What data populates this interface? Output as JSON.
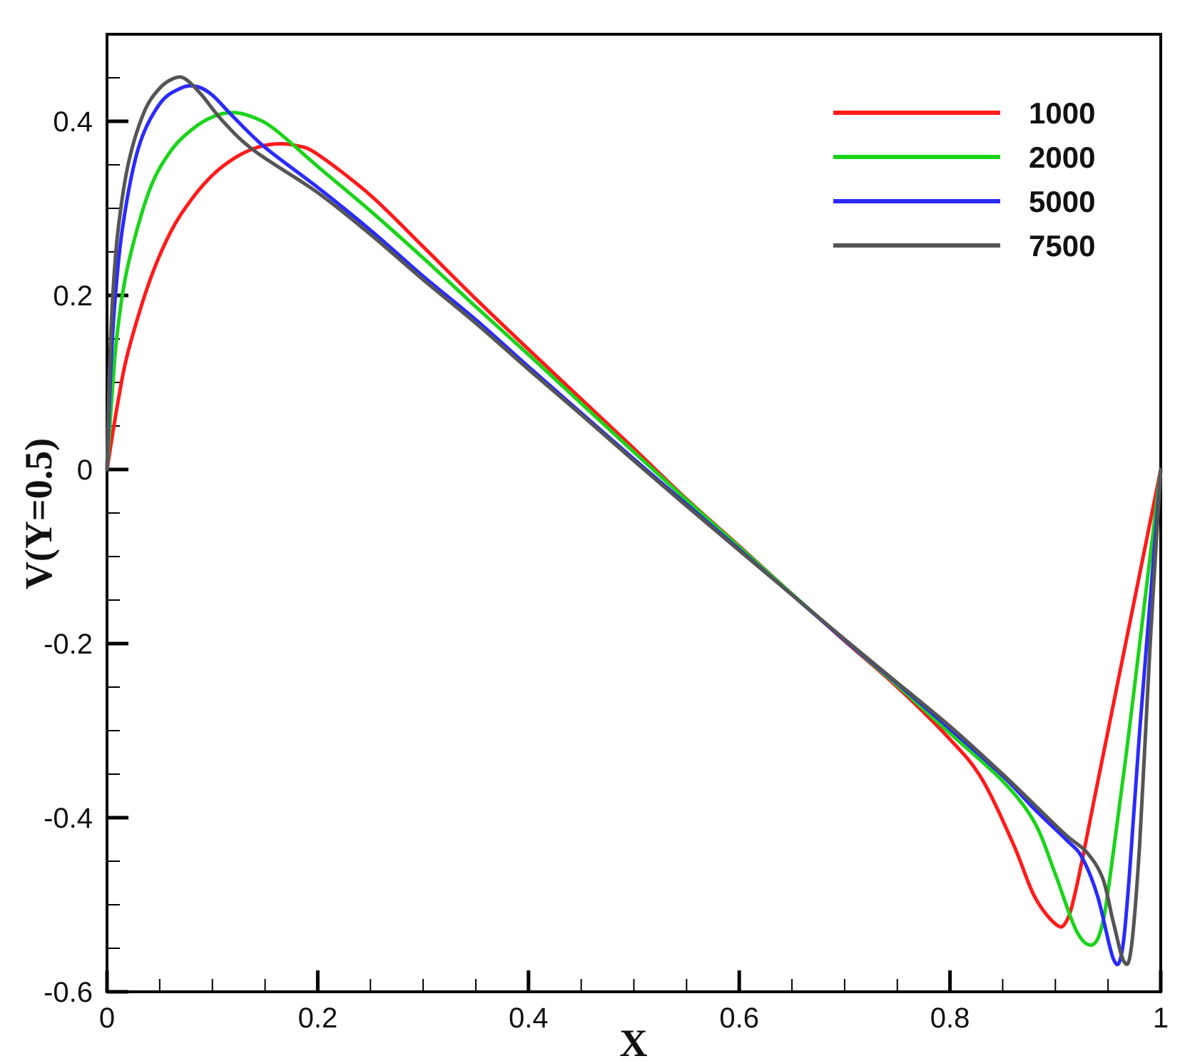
{
  "chart_data": {
    "type": "line",
    "title": "",
    "xlabel": "X",
    "ylabel": "V(Y=0.5)",
    "xlim": [
      0,
      1
    ],
    "ylim": [
      -0.6,
      0.5
    ],
    "x_ticks": [
      0,
      0.2,
      0.4,
      0.6,
      0.8,
      1
    ],
    "x_tick_labels": [
      "0",
      "0.2",
      "0.4",
      "0.6",
      "0.8",
      "1"
    ],
    "y_ticks": [
      -0.6,
      -0.4,
      -0.2,
      0,
      0.2,
      0.4
    ],
    "y_tick_labels": [
      "-0.6",
      "-0.4",
      "-0.2",
      "0",
      "0.2",
      "0.4"
    ],
    "grid": false,
    "legend_position": "top-right",
    "series": [
      {
        "name": "1000",
        "color": "#ff1a1a",
        "points": [
          [
            0,
            0
          ],
          [
            0.01,
            0.075
          ],
          [
            0.02,
            0.135
          ],
          [
            0.04,
            0.215
          ],
          [
            0.06,
            0.272
          ],
          [
            0.08,
            0.31
          ],
          [
            0.1,
            0.338
          ],
          [
            0.12,
            0.357
          ],
          [
            0.14,
            0.369
          ],
          [
            0.16,
            0.374
          ],
          [
            0.18,
            0.372
          ],
          [
            0.2,
            0.362
          ],
          [
            0.25,
            0.315
          ],
          [
            0.3,
            0.256
          ],
          [
            0.35,
            0.196
          ],
          [
            0.4,
            0.138
          ],
          [
            0.45,
            0.081
          ],
          [
            0.5,
            0.024
          ],
          [
            0.55,
            -0.034
          ],
          [
            0.6,
            -0.088
          ],
          [
            0.65,
            -0.143
          ],
          [
            0.7,
            -0.197
          ],
          [
            0.75,
            -0.25
          ],
          [
            0.8,
            -0.31
          ],
          [
            0.83,
            -0.355
          ],
          [
            0.86,
            -0.43
          ],
          [
            0.88,
            -0.49
          ],
          [
            0.9,
            -0.522
          ],
          [
            0.91,
            -0.52
          ],
          [
            0.92,
            -0.48
          ],
          [
            0.94,
            -0.36
          ],
          [
            0.96,
            -0.24
          ],
          [
            0.98,
            -0.12
          ],
          [
            1,
            0
          ]
        ]
      },
      {
        "name": "2000",
        "color": "#1ad41a",
        "points": [
          [
            0,
            0
          ],
          [
            0.005,
            0.09
          ],
          [
            0.01,
            0.16
          ],
          [
            0.02,
            0.235
          ],
          [
            0.04,
            0.32
          ],
          [
            0.06,
            0.365
          ],
          [
            0.08,
            0.39
          ],
          [
            0.1,
            0.405
          ],
          [
            0.12,
            0.41
          ],
          [
            0.14,
            0.404
          ],
          [
            0.16,
            0.39
          ],
          [
            0.2,
            0.348
          ],
          [
            0.25,
            0.297
          ],
          [
            0.3,
            0.243
          ],
          [
            0.35,
            0.187
          ],
          [
            0.4,
            0.132
          ],
          [
            0.45,
            0.076
          ],
          [
            0.5,
            0.02
          ],
          [
            0.55,
            -0.035
          ],
          [
            0.6,
            -0.089
          ],
          [
            0.65,
            -0.143
          ],
          [
            0.7,
            -0.196
          ],
          [
            0.75,
            -0.248
          ],
          [
            0.8,
            -0.303
          ],
          [
            0.85,
            -0.358
          ],
          [
            0.88,
            -0.405
          ],
          [
            0.9,
            -0.465
          ],
          [
            0.92,
            -0.53
          ],
          [
            0.935,
            -0.546
          ],
          [
            0.945,
            -0.52
          ],
          [
            0.955,
            -0.44
          ],
          [
            0.97,
            -0.3
          ],
          [
            0.985,
            -0.15
          ],
          [
            1,
            0
          ]
        ]
      },
      {
        "name": "5000",
        "color": "#2a2aff",
        "points": [
          [
            0,
            0
          ],
          [
            0.003,
            0.1
          ],
          [
            0.007,
            0.185
          ],
          [
            0.015,
            0.28
          ],
          [
            0.03,
            0.37
          ],
          [
            0.05,
            0.42
          ],
          [
            0.07,
            0.438
          ],
          [
            0.085,
            0.44
          ],
          [
            0.1,
            0.43
          ],
          [
            0.12,
            0.405
          ],
          [
            0.15,
            0.37
          ],
          [
            0.2,
            0.324
          ],
          [
            0.25,
            0.275
          ],
          [
            0.3,
            0.222
          ],
          [
            0.35,
            0.172
          ],
          [
            0.4,
            0.118
          ],
          [
            0.45,
            0.065
          ],
          [
            0.5,
            0.012
          ],
          [
            0.55,
            -0.04
          ],
          [
            0.6,
            -0.092
          ],
          [
            0.65,
            -0.144
          ],
          [
            0.7,
            -0.196
          ],
          [
            0.75,
            -0.246
          ],
          [
            0.8,
            -0.298
          ],
          [
            0.85,
            -0.352
          ],
          [
            0.88,
            -0.39
          ],
          [
            0.91,
            -0.425
          ],
          [
            0.925,
            -0.445
          ],
          [
            0.94,
            -0.49
          ],
          [
            0.955,
            -0.562
          ],
          [
            0.963,
            -0.555
          ],
          [
            0.97,
            -0.47
          ],
          [
            0.98,
            -0.3
          ],
          [
            0.99,
            -0.15
          ],
          [
            1,
            0
          ]
        ]
      },
      {
        "name": "7500",
        "color": "#555555",
        "points": [
          [
            0,
            0
          ],
          [
            0.002,
            0.1
          ],
          [
            0.005,
            0.19
          ],
          [
            0.01,
            0.27
          ],
          [
            0.02,
            0.35
          ],
          [
            0.035,
            0.41
          ],
          [
            0.05,
            0.438
          ],
          [
            0.065,
            0.45
          ],
          [
            0.075,
            0.448
          ],
          [
            0.09,
            0.43
          ],
          [
            0.11,
            0.4
          ],
          [
            0.14,
            0.366
          ],
          [
            0.2,
            0.318
          ],
          [
            0.25,
            0.27
          ],
          [
            0.3,
            0.218
          ],
          [
            0.35,
            0.168
          ],
          [
            0.4,
            0.115
          ],
          [
            0.45,
            0.063
          ],
          [
            0.5,
            0.01
          ],
          [
            0.55,
            -0.042
          ],
          [
            0.6,
            -0.093
          ],
          [
            0.65,
            -0.144
          ],
          [
            0.7,
            -0.195
          ],
          [
            0.75,
            -0.245
          ],
          [
            0.8,
            -0.295
          ],
          [
            0.85,
            -0.35
          ],
          [
            0.88,
            -0.385
          ],
          [
            0.91,
            -0.42
          ],
          [
            0.93,
            -0.44
          ],
          [
            0.945,
            -0.47
          ],
          [
            0.955,
            -0.52
          ],
          [
            0.965,
            -0.565
          ],
          [
            0.972,
            -0.55
          ],
          [
            0.98,
            -0.43
          ],
          [
            0.99,
            -0.2
          ],
          [
            1,
            0
          ]
        ]
      }
    ]
  }
}
